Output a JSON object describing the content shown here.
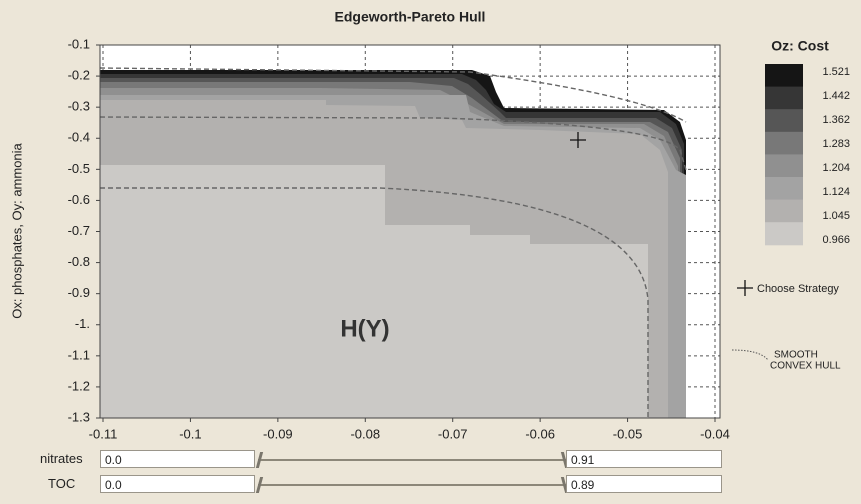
{
  "chart_data": {
    "type": "contour",
    "title": "Edgeworth-Pareto Hull",
    "y_label": "Ox: phosphates, Oy: ammonia",
    "xlim": [
      -0.11,
      -0.04
    ],
    "xticks": [
      -0.11,
      -0.1,
      -0.09,
      -0.08,
      -0.07,
      -0.06,
      -0.05,
      -0.04
    ],
    "ylim": [
      -1.3,
      -0.1
    ],
    "yticks": [
      -0.1,
      -0.2,
      -0.3,
      -0.4,
      -0.5,
      -0.6,
      -0.7,
      -0.8,
      -0.9,
      {
        "value": -1,
        "label": "-1."
      },
      -1.1,
      -1.2,
      -1.3
    ],
    "grid": true,
    "annotation": "H(Y)",
    "legend": {
      "title": "Oz: Cost",
      "values": [
        1.521,
        1.442,
        1.362,
        1.283,
        1.204,
        1.124,
        1.045,
        0.966
      ],
      "colors": [
        "#151515",
        "#363636",
        "#565656",
        "#787878",
        "#909090",
        "#a3a3a3",
        "#b3b1af",
        "#cbc9c6"
      ]
    },
    "marker_label": "Choose Strategy",
    "hull_label": [
      "SMOOTH",
      "CONVEX HULL"
    ]
  },
  "controls": [
    {
      "label": "nitrates",
      "min": "0.0",
      "max": "0.91"
    },
    {
      "label": "TOC",
      "min": "0.0",
      "max": "0.89"
    }
  ]
}
